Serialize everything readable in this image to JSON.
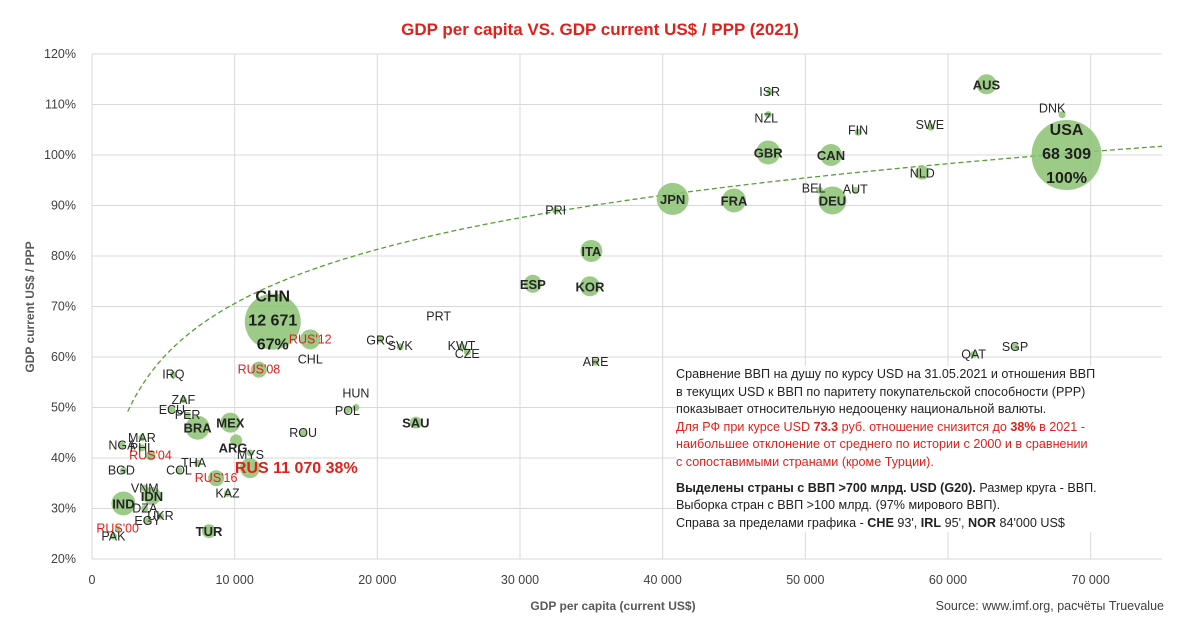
{
  "chart_data": {
    "type": "scatter",
    "title": "GDP per capita VS. GDP current US$ / PPP (2021)",
    "xlabel": "GDP per capita (current US$)",
    "ylabel": "GDP current US$ / PPP",
    "xlim": [
      0,
      75000
    ],
    "ylim": [
      20,
      120
    ],
    "x_ticks": [
      "0",
      "10 000",
      "20 000",
      "30 000",
      "40 000",
      "50 000",
      "60 000",
      "70 000"
    ],
    "y_ticks": [
      "20%",
      "30%",
      "40%",
      "50%",
      "60%",
      "70%",
      "80%",
      "90%",
      "100%",
      "110%",
      "120%"
    ],
    "grid": true,
    "trendline": "dashed logarithmic fit",
    "colors": {
      "bubble": "#8bc273",
      "trend": "#5a9e3a",
      "title": "#e0201b",
      "russia": "#e0201b"
    },
    "points": [
      {
        "label": "USA",
        "x": 68309,
        "y": 100,
        "g20": true,
        "size": "largest"
      },
      {
        "label": "AUS",
        "x": 62700,
        "y": 114,
        "g20": true
      },
      {
        "label": "DNK",
        "x": 68000,
        "y": 108,
        "g20": false
      },
      {
        "label": "ISR",
        "x": 47500,
        "y": 112.5,
        "g20": false
      },
      {
        "label": "NZL",
        "x": 47400,
        "y": 108,
        "g20": false
      },
      {
        "label": "SWE",
        "x": 58800,
        "y": 105.5,
        "g20": false
      },
      {
        "label": "FIN",
        "x": 53700,
        "y": 104.5,
        "g20": false
      },
      {
        "label": "GBR",
        "x": 47400,
        "y": 100.5,
        "g20": true
      },
      {
        "label": "CAN",
        "x": 51800,
        "y": 100,
        "g20": true
      },
      {
        "label": "NLD",
        "x": 58200,
        "y": 96.5,
        "g20": false
      },
      {
        "label": "AUT",
        "x": 53500,
        "y": 93,
        "g20": false
      },
      {
        "label": "BEL",
        "x": 51000,
        "y": 93,
        "g20": false
      },
      {
        "label": "DEU",
        "x": 51900,
        "y": 91,
        "g20": true
      },
      {
        "label": "JPN",
        "x": 40700,
        "y": 91.3,
        "g20": true
      },
      {
        "label": "FRA",
        "x": 45000,
        "y": 91,
        "g20": true
      },
      {
        "label": "PRI",
        "x": 32500,
        "y": 89,
        "g20": false
      },
      {
        "label": "ITA",
        "x": 35000,
        "y": 81,
        "g20": true
      },
      {
        "label": "ESP",
        "x": 30900,
        "y": 74.5,
        "g20": true
      },
      {
        "label": "KOR",
        "x": 34900,
        "y": 74,
        "g20": true
      },
      {
        "label": "PRT",
        "x": 24300,
        "y": 68,
        "g20": false
      },
      {
        "label": "CHN",
        "x": 12671,
        "y": 67,
        "g20": true,
        "size": "large"
      },
      {
        "label": "GRC",
        "x": 20200,
        "y": 63.5,
        "g20": false
      },
      {
        "label": "KWT",
        "x": 25900,
        "y": 62,
        "g20": false
      },
      {
        "label": "SVK",
        "x": 21600,
        "y": 62,
        "g20": false
      },
      {
        "label": "CZE",
        "x": 26300,
        "y": 61,
        "g20": false
      },
      {
        "label": "CHL",
        "x": 15300,
        "y": 63.5,
        "g20": false
      },
      {
        "label": "RUS'12",
        "x": 15300,
        "y": 63.5,
        "g20": false,
        "russia": true
      },
      {
        "label": "QAT",
        "x": 61800,
        "y": 60.5,
        "g20": false
      },
      {
        "label": "SGP",
        "x": 64700,
        "y": 62,
        "g20": false
      },
      {
        "label": "ARE",
        "x": 35300,
        "y": 59,
        "g20": false
      },
      {
        "label": "RUS'08",
        "x": 11700,
        "y": 57.5,
        "g20": false,
        "russia": true
      },
      {
        "label": "IRQ",
        "x": 5700,
        "y": 56.5,
        "g20": false
      },
      {
        "label": "ZAF",
        "x": 6400,
        "y": 51.5,
        "g20": false
      },
      {
        "label": "ECU",
        "x": 5600,
        "y": 49.5,
        "g20": false
      },
      {
        "label": "PER",
        "x": 6700,
        "y": 48.5,
        "g20": false
      },
      {
        "label": "HUN",
        "x": 18500,
        "y": 50,
        "g20": false
      },
      {
        "label": "POL",
        "x": 17900,
        "y": 49.5,
        "g20": false
      },
      {
        "label": "SAU",
        "x": 22700,
        "y": 47,
        "g20": true
      },
      {
        "label": "BRA",
        "x": 7400,
        "y": 46,
        "g20": true
      },
      {
        "label": "MEX",
        "x": 9700,
        "y": 47,
        "g20": true
      },
      {
        "label": "MAR",
        "x": 3500,
        "y": 44,
        "g20": false
      },
      {
        "label": "ROU",
        "x": 14800,
        "y": 45,
        "g20": false
      },
      {
        "label": "ARG",
        "x": 10100,
        "y": 43.5,
        "g20": true
      },
      {
        "label": "NGA",
        "x": 2100,
        "y": 42.5,
        "g20": false
      },
      {
        "label": "PHL",
        "x": 3500,
        "y": 42,
        "g20": false
      },
      {
        "label": "RUS'04",
        "x": 4100,
        "y": 40.5,
        "g20": false,
        "russia": true
      },
      {
        "label": "MYS",
        "x": 11100,
        "y": 41,
        "g20": false
      },
      {
        "label": "THA",
        "x": 7400,
        "y": 39,
        "g20": false
      },
      {
        "label": "RUS 11 070 38%",
        "x": 11070,
        "y": 38,
        "g20": true,
        "russia": true,
        "size": "medium"
      },
      {
        "label": "BGD",
        "x": 2200,
        "y": 37.5,
        "g20": false
      },
      {
        "label": "COL",
        "x": 6100,
        "y": 37.5,
        "g20": false
      },
      {
        "label": "RUS'16",
        "x": 8700,
        "y": 36,
        "g20": false,
        "russia": true
      },
      {
        "label": "KAZ",
        "x": 9500,
        "y": 33,
        "g20": false
      },
      {
        "label": "VNM",
        "x": 3700,
        "y": 34,
        "g20": false
      },
      {
        "label": "IND",
        "x": 2200,
        "y": 31,
        "g20": true
      },
      {
        "label": "IDN",
        "x": 4200,
        "y": 32.5,
        "g20": true
      },
      {
        "label": "DZA",
        "x": 3700,
        "y": 30,
        "g20": false
      },
      {
        "label": "UKR",
        "x": 4800,
        "y": 28.5,
        "g20": false
      },
      {
        "label": "EGY",
        "x": 3900,
        "y": 27.5,
        "g20": false
      },
      {
        "label": "TUR",
        "x": 8200,
        "y": 25.5,
        "g20": true
      },
      {
        "label": "RUS'00",
        "x": 1800,
        "y": 26,
        "g20": false,
        "russia": true
      },
      {
        "label": "PAK",
        "x": 1500,
        "y": 24.5,
        "g20": false
      }
    ],
    "bubble_annotations": {
      "USA": [
        "USA",
        "68 309",
        "100%"
      ],
      "CHN": [
        "CHN",
        "12 671",
        "67%"
      ]
    },
    "note": {
      "line1": "Сравнение ВВП на душу по курсу USD на 31.05.2021 и отношения ВВП",
      "line2": "в текущих USD к ВВП по паритету покупательской способности (PPP)",
      "line3": "показывает относительную недооценку национальной валюты.",
      "red_a": "Для РФ при курсе USD ",
      "red_b": "73.3",
      "red_c": " руб. отношение снизится до ",
      "red_d": "38%",
      "red_e": " в 2021 -",
      "red_line2": "наибольшее отклонение от среднего по истории с 2000 и в сравнении",
      "red_line3": "с сопоставимыми странами (кроме Турции).",
      "g20_bold": "Выделены страны с ВВП >700 млрд. USD (G20).",
      "g20_rest": " Размер круга - ВВП.",
      "sample": "Выборка стран с ВВП >100 млрд. (97% мирового ВВП).",
      "right_a": "Справа за пределами графика - ",
      "right_b": "CHE",
      "right_c": " 93', ",
      "right_d": "IRL",
      "right_e": " 95', ",
      "right_f": "NOR",
      "right_g": " 84'000 US$"
    },
    "source": "Source: www.imf.org,  расчёты Truevalue"
  }
}
